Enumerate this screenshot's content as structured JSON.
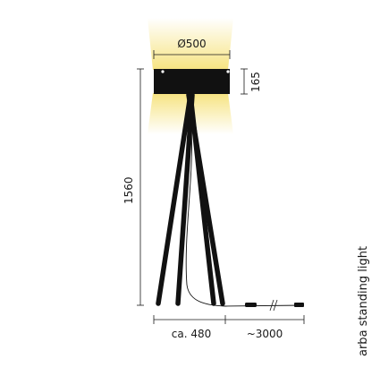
{
  "product": {
    "name": "arba standing light"
  },
  "dimensions": {
    "shade_diameter": "Ø500",
    "shade_height": "165",
    "total_height": "1560",
    "base_width": "ca. 480",
    "cable_length": "~3000"
  },
  "colors": {
    "light_glow": "#f6e27a",
    "lamp_body": "#111111",
    "dimension_lines": "#1a1a1a"
  }
}
